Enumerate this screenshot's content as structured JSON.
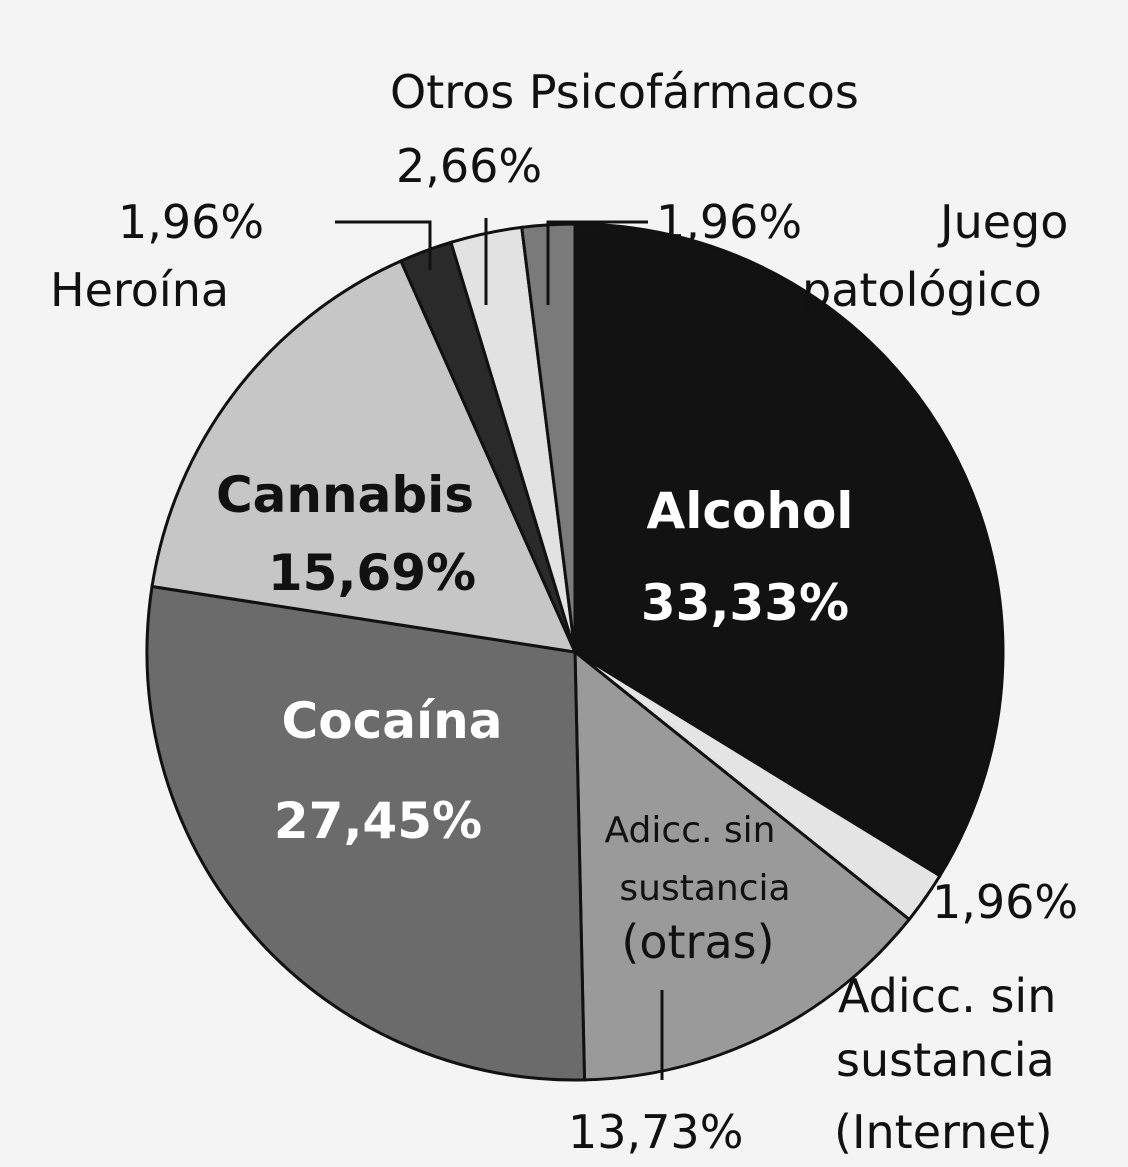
{
  "chart_data": {
    "type": "pie",
    "start_angle_deg": 0,
    "direction": "clockwise",
    "slices": [
      {
        "label": "Alcohol",
        "percent_text": "33,33%",
        "value": 33.33,
        "color": "#121212"
      },
      {
        "label": "Adicc. sin sustancia (Internet)",
        "percent_text": "1,96%",
        "value": 1.96,
        "color": "#e4e4e4"
      },
      {
        "label": "Adicc. sin sustancia (otras)",
        "percent_text": "13,73%",
        "value": 13.73,
        "color": "#9a9a9a"
      },
      {
        "label": "Cocaína",
        "percent_text": "27,45%",
        "value": 27.45,
        "color": "#6b6b6b"
      },
      {
        "label": "Cannabis",
        "percent_text": "15,69%",
        "value": 15.69,
        "color": "#c6c6c6"
      },
      {
        "label": "Heroína",
        "percent_text": "1,96%",
        "value": 1.96,
        "color": "#2a2a2a"
      },
      {
        "label": "Otros Psicofármacos",
        "percent_text": "2,66%",
        "value": 2.66,
        "color": "#e2e2e2"
      },
      {
        "label": "Juego patológico",
        "percent_text": "1,96%",
        "value": 1.96,
        "color": "#7a7a7a"
      }
    ]
  },
  "labels": {
    "alcohol_name": "Alcohol",
    "alcohol_pct": "33,33%",
    "cocaina_name": "Cocaína",
    "cocaina_pct": "27,45%",
    "cannabis_name": "Cannabis",
    "cannabis_pct": "15,69%",
    "otras_line1": "Adicc. sin",
    "otras_line2": "sustancia",
    "otras_line3": "(otras)",
    "otras_pct": "13,73%",
    "internet_pct": "1,96%",
    "internet_line1": "Adicc. sin",
    "internet_line2": "sustancia",
    "internet_line3": "(Internet)",
    "heroina_pct": "1,96%",
    "heroina_name": "Heroína",
    "otros_psico_name": "Otros Psicofármacos",
    "otros_psico_pct": "2,66%",
    "juego_pct": "1,96%",
    "juego_line1": "Juego",
    "juego_line2": "patológico"
  }
}
